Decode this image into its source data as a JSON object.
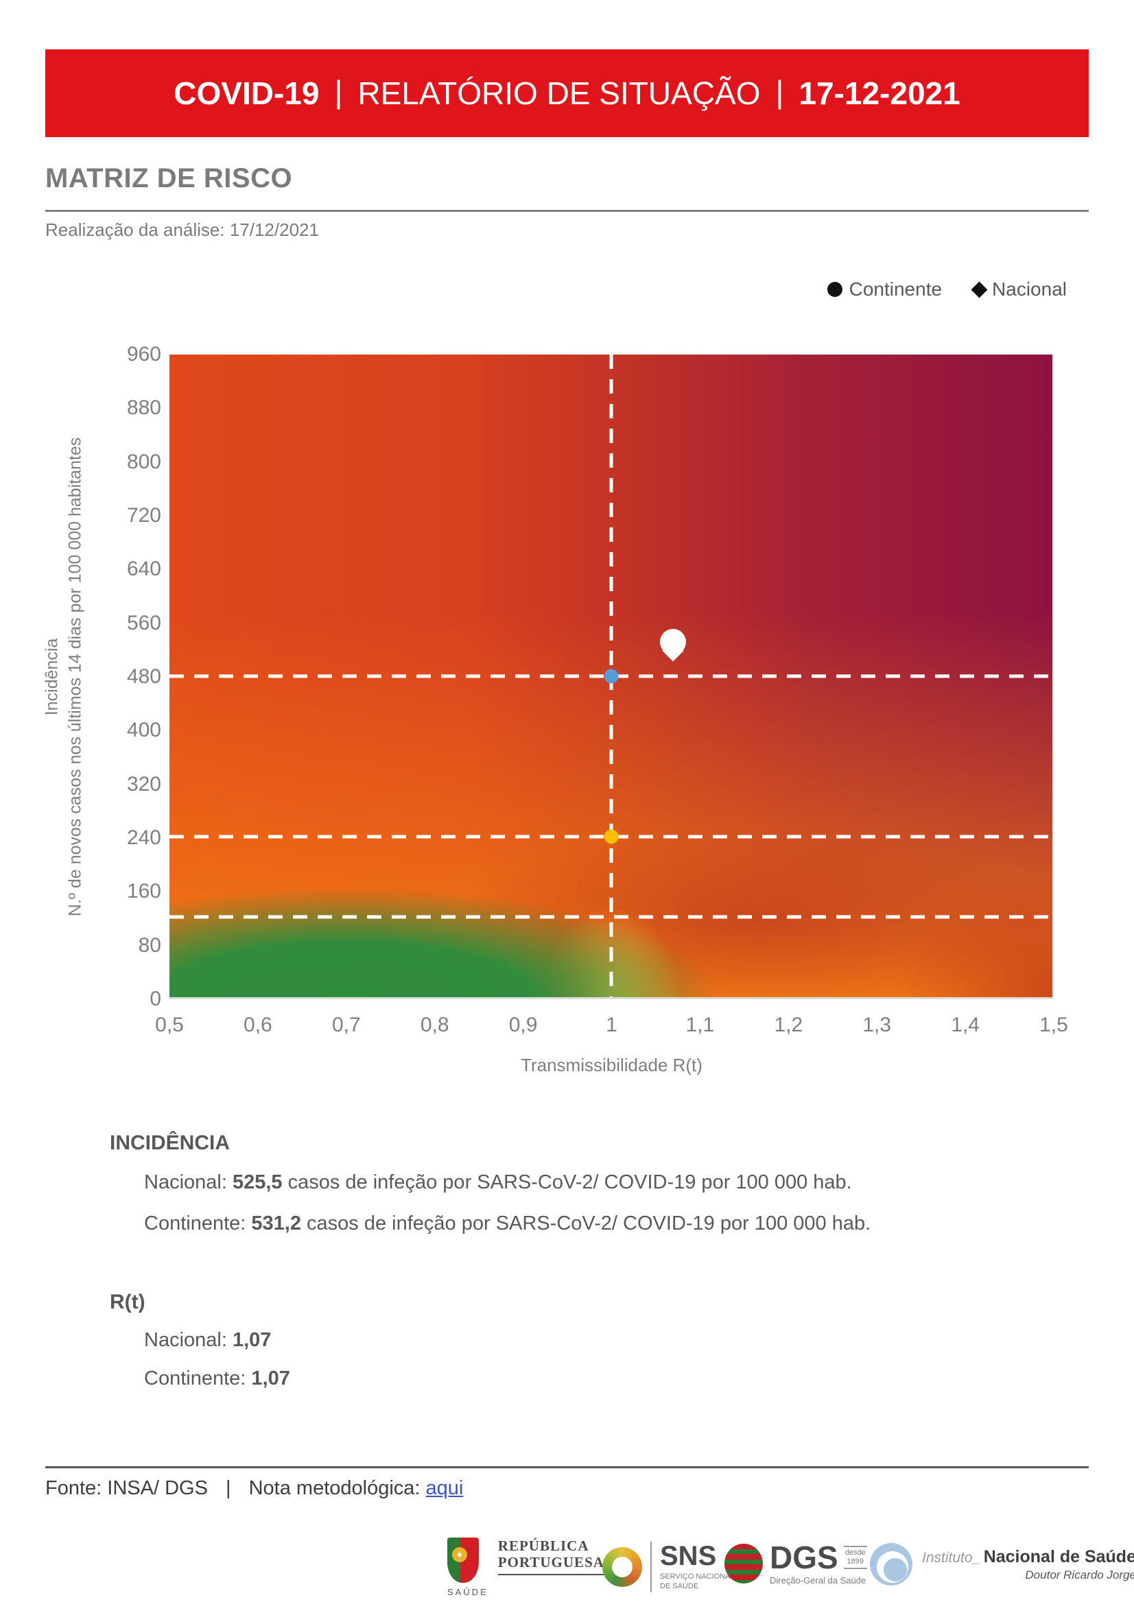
{
  "header": {
    "program": "COVID-19",
    "separator": "|",
    "title": "RELATÓRIO DE SITUAÇÃO",
    "date": "17-12-2021"
  },
  "page": {
    "section_title": "MATRIZ DE RISCO",
    "analysis_line": "Realização da análise: 17/12/2021"
  },
  "legend": {
    "continente": "Continente",
    "nacional": "Nacional"
  },
  "chart_data": {
    "type": "scatter",
    "title": "Matriz de risco",
    "xlabel": "Transmissibilidade R(t)",
    "ylabel_line1": "Incidência",
    "ylabel_line2": "N.º de novos casos nos últimos 14 dias por 100 000 habitantes",
    "xlim": [
      0.5,
      1.5
    ],
    "ylim": [
      0,
      960
    ],
    "x_ticks": [
      "0,5",
      "0,6",
      "0,7",
      "0,8",
      "0,9",
      "1",
      "1,1",
      "1,2",
      "1,3",
      "1,4",
      "1,5"
    ],
    "y_ticks": [
      "0",
      "80",
      "160",
      "240",
      "320",
      "400",
      "480",
      "560",
      "640",
      "720",
      "800",
      "880",
      "960"
    ],
    "grid": false,
    "legend_position": "top-right",
    "background": "risk-matrix heatmap: green low-left, orange left/bottom, dark red top-right",
    "reference_lines": {
      "vertical_x": 1,
      "horizontal_y": [
        480,
        240,
        120
      ]
    },
    "series": [
      {
        "name": "Continente",
        "marker": "circle",
        "color": "#FFFFFF",
        "x": 1.07,
        "y": 531.2
      },
      {
        "name": "Nacional",
        "marker": "diamond",
        "color": "#FFFFFF",
        "x": 1.07,
        "y": 525.5
      }
    ],
    "reference_points": [
      {
        "x": 1,
        "y": 480,
        "color": "#5B9BD5"
      },
      {
        "x": 1,
        "y": 240,
        "color": "#FFC000"
      }
    ]
  },
  "incidencia": {
    "heading": "INCIDÊNCIA",
    "rows": [
      {
        "label": "Nacional:",
        "value": "525,5",
        "suffix": "casos de infeção por SARS-CoV-2/ COVID-19 por 100 000 hab."
      },
      {
        "label": "Continente:",
        "value": "531,2",
        "suffix": "casos de infeção por SARS-CoV-2/ COVID-19 por 100 000 hab."
      }
    ]
  },
  "rt": {
    "heading": "R(t)",
    "rows": [
      {
        "label": "Nacional:",
        "value": "1,07"
      },
      {
        "label": "Continente:",
        "value": "1,07"
      }
    ]
  },
  "footer": {
    "source": "Fonte: INSA/ DGS",
    "separator": "|",
    "note_label": "Nota metodológica:",
    "link_text": "aqui"
  },
  "logos": {
    "republica": {
      "line1": "REPÚBLICA",
      "line2": "PORTUGUESA",
      "sub": "SAÚDE"
    },
    "sns": {
      "abbr": "SNS",
      "sub1": "SERVIÇO NACIONAL",
      "sub2": "DE SAÚDE"
    },
    "dgs": {
      "abbr": "DGS",
      "since_label": "desde",
      "since_year": "1899",
      "sub": "Direção-Geral da Saúde"
    },
    "insa": {
      "prefix": "Instituto_",
      "name": "Nacional de Saúde",
      "sub": "Doutor Ricardo Jorge"
    }
  },
  "colors": {
    "banner_red": "#E0151B",
    "link_blue": "#3B52C4",
    "dot_blue": "#5B9BD5",
    "dot_orange": "#FFC000",
    "matrix_green": "#2F8B3C",
    "matrix_orange": "#F26A15",
    "matrix_dark_red": "#8E1240",
    "text_gray": "#595959",
    "tick_gray": "#7F7F7F"
  }
}
